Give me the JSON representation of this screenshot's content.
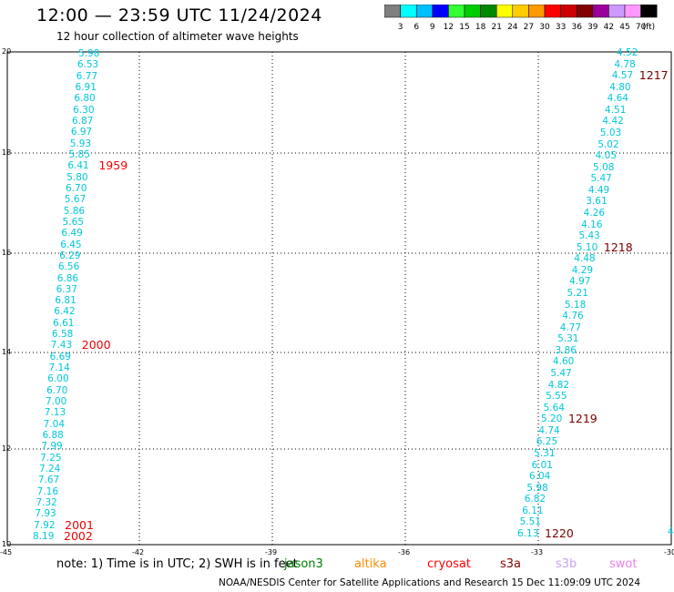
{
  "title": "12:00 — 23:59 UTC 11/24/2024",
  "subtitle": "12 hour collection of altimeter wave heights",
  "colorbar": {
    "colors": [
      "#7f7f7f",
      "#00ffff",
      "#00bfff",
      "#0000ff",
      "#33ff33",
      "#00cc00",
      "#008800",
      "#ffff00",
      "#ffcc00",
      "#ff9900",
      "#ff0000",
      "#cc0000",
      "#800000",
      "#990099",
      "#cc99ff",
      "#ff99ff",
      "#000000"
    ],
    "labels": [
      "3",
      "6",
      "9",
      "12",
      "15",
      "18",
      "21",
      "24",
      "27",
      "30",
      "33",
      "36",
      "39",
      "42",
      "45",
      "70",
      "(ft)"
    ]
  },
  "axes": {
    "x_ticks": [
      "-45",
      "-42",
      "-39",
      "-36",
      "-33",
      "-30"
    ],
    "y_ticks": [
      "20",
      "18",
      "16",
      "14",
      "12",
      "10"
    ]
  },
  "tracks": [
    {
      "values": [
        "5.98",
        "6.53",
        "6.77",
        "6.91",
        "6.80",
        "6.30",
        "6.87",
        "6.97",
        "5.93",
        "5.85",
        "6.41",
        "5.80",
        "6.70",
        "5.67",
        "5.86",
        "5.65",
        "6.49",
        "6.45",
        "6.29",
        "6.56",
        "6.86",
        "6.37",
        "6.81",
        "6.42",
        "6.61",
        "6.58",
        "7.43",
        "6.69",
        "7.14",
        "6.00",
        "6.70",
        "7.00",
        "7.13",
        "7.04",
        "6.88",
        "7.99",
        "7.25",
        "7.24",
        "7.67",
        "7.16",
        "7.32",
        "7.93",
        "7.92",
        "8.19"
      ],
      "hours": [
        {
          "label": "1959",
          "after": 10
        },
        {
          "label": "2000",
          "after": 26
        },
        {
          "label": "2001",
          "after": 42
        },
        {
          "label": "2002",
          "after": 43
        }
      ]
    },
    {
      "values": [
        "4.52",
        "4.78",
        "4.57",
        "4.80",
        "4.64",
        "4.51",
        "4.42",
        "5.03",
        "5.02",
        "4.05",
        "5.08",
        "5.47",
        "4.49",
        "3.61",
        "4.26",
        "4.16",
        "5.43",
        "5.10",
        "4.48",
        "4.29",
        "4.97",
        "5.21",
        "5.18",
        "4.76",
        "4.77",
        "5.31",
        "3.86",
        "4.60",
        "5.47",
        "4.82",
        "5.55",
        "5.64",
        "5.20",
        "4.74",
        "6.25",
        "5.31",
        "6.01",
        "6.04",
        "5.98",
        "6.82",
        "6.11",
        "5.51",
        "6.13"
      ],
      "hours": [
        {
          "label": "1217",
          "after": 2
        },
        {
          "label": "1218",
          "after": 17
        },
        {
          "label": "1219",
          "after": 32
        },
        {
          "label": "1220",
          "after": 42
        }
      ]
    }
  ],
  "edge_value": "4",
  "note": "note:  1) Time is in UTC;  2) SWH is in feet",
  "satellites": [
    {
      "name": "jason3",
      "color": "#008000"
    },
    {
      "name": "altika",
      "color": "#ff8c00"
    },
    {
      "name": "cryosat",
      "color": "#ff0000"
    },
    {
      "name": "s3a",
      "color": "#8b0000"
    },
    {
      "name": "s3b",
      "color": "#c8a2e8"
    },
    {
      "name": "swot",
      "color": "#ee82ee"
    }
  ],
  "credit": "NOAA/NESDIS Center for Satellite Applications and Research    15 Dec 11:09:09 UTC 2024",
  "label_colors": {
    "track_values": "#00c8d8",
    "hour_track1": "#ee0000",
    "hour_track2": "#7a0000"
  }
}
